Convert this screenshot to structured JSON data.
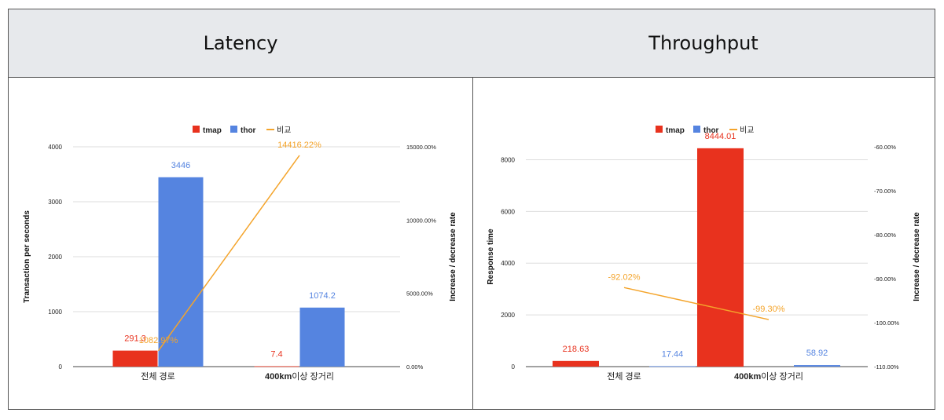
{
  "headers": [
    "Latency",
    "Throughput"
  ],
  "colors": {
    "tmap": "#e8321e",
    "thor": "#5584e0",
    "compare": "#f4a42b",
    "grid": "#dddddd",
    "axis": "#444444"
  },
  "chart_data": [
    {
      "type": "bar",
      "header": "Latency",
      "categories": [
        "전체 경로",
        "400km이상 장거리"
      ],
      "category_bold_prefix": [
        "",
        "400km"
      ],
      "series": [
        {
          "name": "tmap",
          "values": [
            291.3,
            7.4
          ],
          "labels": [
            "291.3",
            "7.4"
          ]
        },
        {
          "name": "thor",
          "values": [
            3446,
            1074.2
          ],
          "labels": [
            "3446",
            "1074.2"
          ]
        }
      ],
      "line_series": {
        "name": "비교",
        "values": [
          1082.97,
          14416.22
        ],
        "labels": [
          "1082.97%",
          "14416.22%"
        ]
      },
      "ylabel": "Transaction per seconds",
      "y2label": "Increase / decrease rate",
      "ylim": [
        0,
        4000
      ],
      "yticks": [
        "0",
        "1000",
        "2000",
        "3000",
        "4000"
      ],
      "y2lim": [
        0,
        15000
      ],
      "y2ticks": [
        "0.00%",
        "5000.00%",
        "10000.00%",
        "15000.00%"
      ],
      "legend": [
        "tmap",
        "thor",
        "비교"
      ],
      "legend_position": "top-center"
    },
    {
      "type": "bar",
      "header": "Throughput",
      "categories": [
        "전체 경로",
        "400km이상 장거리"
      ],
      "category_bold_prefix": [
        "",
        "400km"
      ],
      "series": [
        {
          "name": "tmap",
          "values": [
            218.63,
            8444.01
          ],
          "labels": [
            "218.63",
            "8444.01"
          ]
        },
        {
          "name": "thor",
          "values": [
            17.44,
            58.92
          ],
          "labels": [
            "17.44",
            "58.92"
          ]
        }
      ],
      "line_series": {
        "name": "비교",
        "values": [
          -92.02,
          -99.3
        ],
        "labels": [
          "-92.02%",
          "-99.30%"
        ]
      },
      "ylabel": "Response time",
      "y2label": "Increase / decrease rate",
      "ylim": [
        0,
        8500
      ],
      "yticks": [
        "0",
        "2000",
        "4000",
        "6000",
        "8000"
      ],
      "y2lim": [
        -110,
        -60
      ],
      "y2ticks": [
        "-110.00%",
        "-100.00%",
        "-90.00%",
        "-80.00%",
        "-70.00%",
        "-60.00%"
      ],
      "legend": [
        "tmap",
        "thor",
        "비교"
      ],
      "legend_position": "top-center"
    }
  ]
}
